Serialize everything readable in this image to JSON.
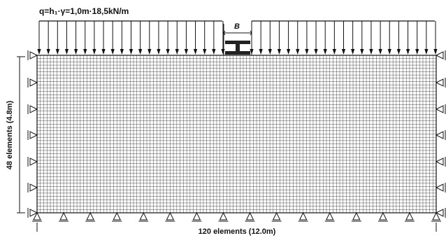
{
  "load_label": "q=h₁·γ=1,0m·18,5kN/m",
  "footing_label": "B",
  "vertical_dim_label": "48 elements (4.8m)",
  "horizontal_dim_label": "120 elements (12.0m)",
  "mesh": {
    "columns": 120,
    "rows": 48
  },
  "colors": {
    "line": "#111111",
    "mesh": "#3a3a3a",
    "background": "#ffffff"
  }
}
